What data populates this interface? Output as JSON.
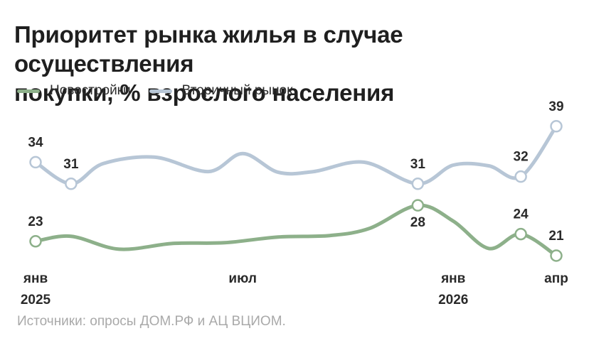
{
  "title_lines": [
    "Приоритет рынка жилья в случае осуществления",
    "покупки, % взрослого населения"
  ],
  "source": "Источники: опросы ДОМ.РФ и АЦ ВЦИОМ.",
  "colors": {
    "green": "#8db08a",
    "blue": "#b7c6d6",
    "text": "#1f1f1f",
    "muted": "#a9a9a9"
  },
  "chart_data": {
    "type": "line",
    "title": "Приоритет рынка жилья в случае осуществления покупки, % взрослого населения",
    "x_ticks": [
      {
        "date": "2025-01-01",
        "lines": [
          "янв",
          "2025"
        ]
      },
      {
        "date": "2025-07-01",
        "lines": [
          "июл"
        ]
      },
      {
        "date": "2026-01-01",
        "lines": [
          "янв",
          "2026"
        ]
      },
      {
        "date": "2026-04-01",
        "lines": [
          "апр"
        ]
      }
    ],
    "ylim": [
      18,
      42
    ],
    "legend_position": "top-left",
    "grid": false,
    "series": [
      {
        "name": "Вторичный рынок",
        "color": "#b7c6d6",
        "points": [
          {
            "date": "2025-01-01",
            "value": 34
          },
          {
            "date": "2025-02-01",
            "value": 31
          },
          {
            "date": "2025-03-01",
            "value": 33.8
          },
          {
            "date": "2025-04-15",
            "value": 34.7
          },
          {
            "date": "2025-06-01",
            "value": 32.7
          },
          {
            "date": "2025-07-01",
            "value": 35.2
          },
          {
            "date": "2025-08-01",
            "value": 32.6
          },
          {
            "date": "2025-09-01",
            "value": 32.7
          },
          {
            "date": "2025-10-15",
            "value": 34
          },
          {
            "date": "2025-12-01",
            "value": 31
          },
          {
            "date": "2026-01-01",
            "value": 33.6
          },
          {
            "date": "2026-02-01",
            "value": 33.5
          },
          {
            "date": "2026-03-01",
            "value": 32
          },
          {
            "date": "2026-04-01",
            "value": 39
          }
        ],
        "labeled": [
          {
            "date": "2025-01-01",
            "value": 34,
            "label": "34",
            "pos": "above"
          },
          {
            "date": "2025-02-01",
            "value": 31,
            "label": "31",
            "pos": "above"
          },
          {
            "date": "2025-12-01",
            "value": 31,
            "label": "31",
            "pos": "above"
          },
          {
            "date": "2026-03-01",
            "value": 32,
            "label": "32",
            "pos": "above"
          },
          {
            "date": "2026-04-01",
            "value": 39,
            "label": "39",
            "pos": "above"
          }
        ]
      },
      {
        "name": "Новостройки",
        "color": "#8db08a",
        "points": [
          {
            "date": "2025-01-01",
            "value": 23
          },
          {
            "date": "2025-02-01",
            "value": 23.7
          },
          {
            "date": "2025-03-15",
            "value": 21.9
          },
          {
            "date": "2025-05-01",
            "value": 22.7
          },
          {
            "date": "2025-06-15",
            "value": 22.8
          },
          {
            "date": "2025-08-01",
            "value": 23.6
          },
          {
            "date": "2025-09-15",
            "value": 23.8
          },
          {
            "date": "2025-10-20",
            "value": 24.8
          },
          {
            "date": "2025-12-01",
            "value": 28
          },
          {
            "date": "2026-01-01",
            "value": 25.8
          },
          {
            "date": "2026-02-01",
            "value": 22
          },
          {
            "date": "2026-03-01",
            "value": 24
          },
          {
            "date": "2026-04-01",
            "value": 21
          }
        ],
        "labeled": [
          {
            "date": "2025-01-01",
            "value": 23,
            "label": "23",
            "pos": "above"
          },
          {
            "date": "2025-12-01",
            "value": 28,
            "label": "28",
            "pos": "below"
          },
          {
            "date": "2026-03-01",
            "value": 24,
            "label": "24",
            "pos": "above"
          },
          {
            "date": "2026-04-01",
            "value": 21,
            "label": "21",
            "pos": "above"
          }
        ]
      }
    ]
  }
}
